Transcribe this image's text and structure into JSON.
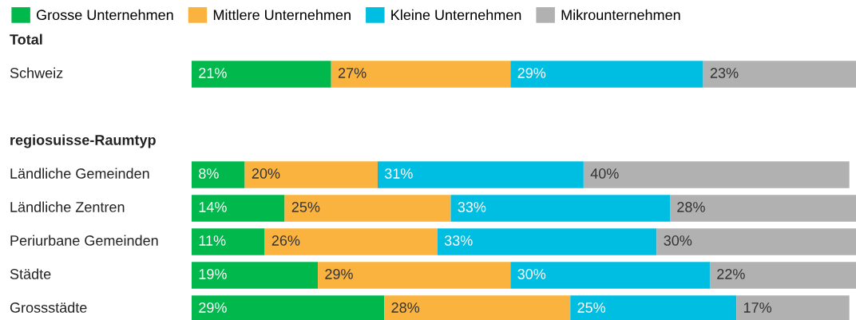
{
  "chart_data": {
    "type": "bar",
    "orientation": "horizontal",
    "stacked": true,
    "categories": [
      "Total",
      "Schweiz",
      null,
      "regiosuisse-Raumtyp",
      "Ländliche Gemeinden",
      "Ländliche Zentren",
      "Periurbane Gemeinden",
      "Städte",
      "Grossstädte"
    ],
    "xlim": [
      0,
      100
    ],
    "tick_labels": false,
    "grid": false,
    "legend": "top left",
    "series": [
      {
        "name": "Grosse Unternehmen",
        "color": "#00b84c",
        "values": [
          null,
          21,
          null,
          null,
          8,
          14,
          11,
          19,
          29
        ],
        "value_labels": [
          null,
          "21%",
          null,
          null,
          "8%",
          "14%",
          "11%",
          "19%",
          "29%"
        ]
      },
      {
        "name": "Mittlere Unternehmen",
        "color": "#fbb33f",
        "values": [
          null,
          27,
          null,
          null,
          20,
          25,
          26,
          29,
          28
        ],
        "value_labels": [
          null,
          "27%",
          null,
          null,
          "20%",
          "25%",
          "26%",
          "29%",
          "28%"
        ]
      },
      {
        "name": "Kleine Unternehmen",
        "color": "#00bde2",
        "values": [
          null,
          29,
          null,
          null,
          31,
          33,
          33,
          30,
          25
        ],
        "value_labels": [
          null,
          "29%",
          null,
          null,
          "31%",
          "33%",
          "33%",
          "30%",
          "25%"
        ]
      },
      {
        "name": "Mikrounternehmen",
        "color": "#b1b1b1",
        "values": [
          null,
          23,
          null,
          null,
          40,
          28,
          30,
          22,
          17
        ],
        "value_labels": [
          null,
          "23%",
          null,
          null,
          "40%",
          "28%",
          "30%",
          "22%",
          "17%"
        ]
      }
    ]
  }
}
